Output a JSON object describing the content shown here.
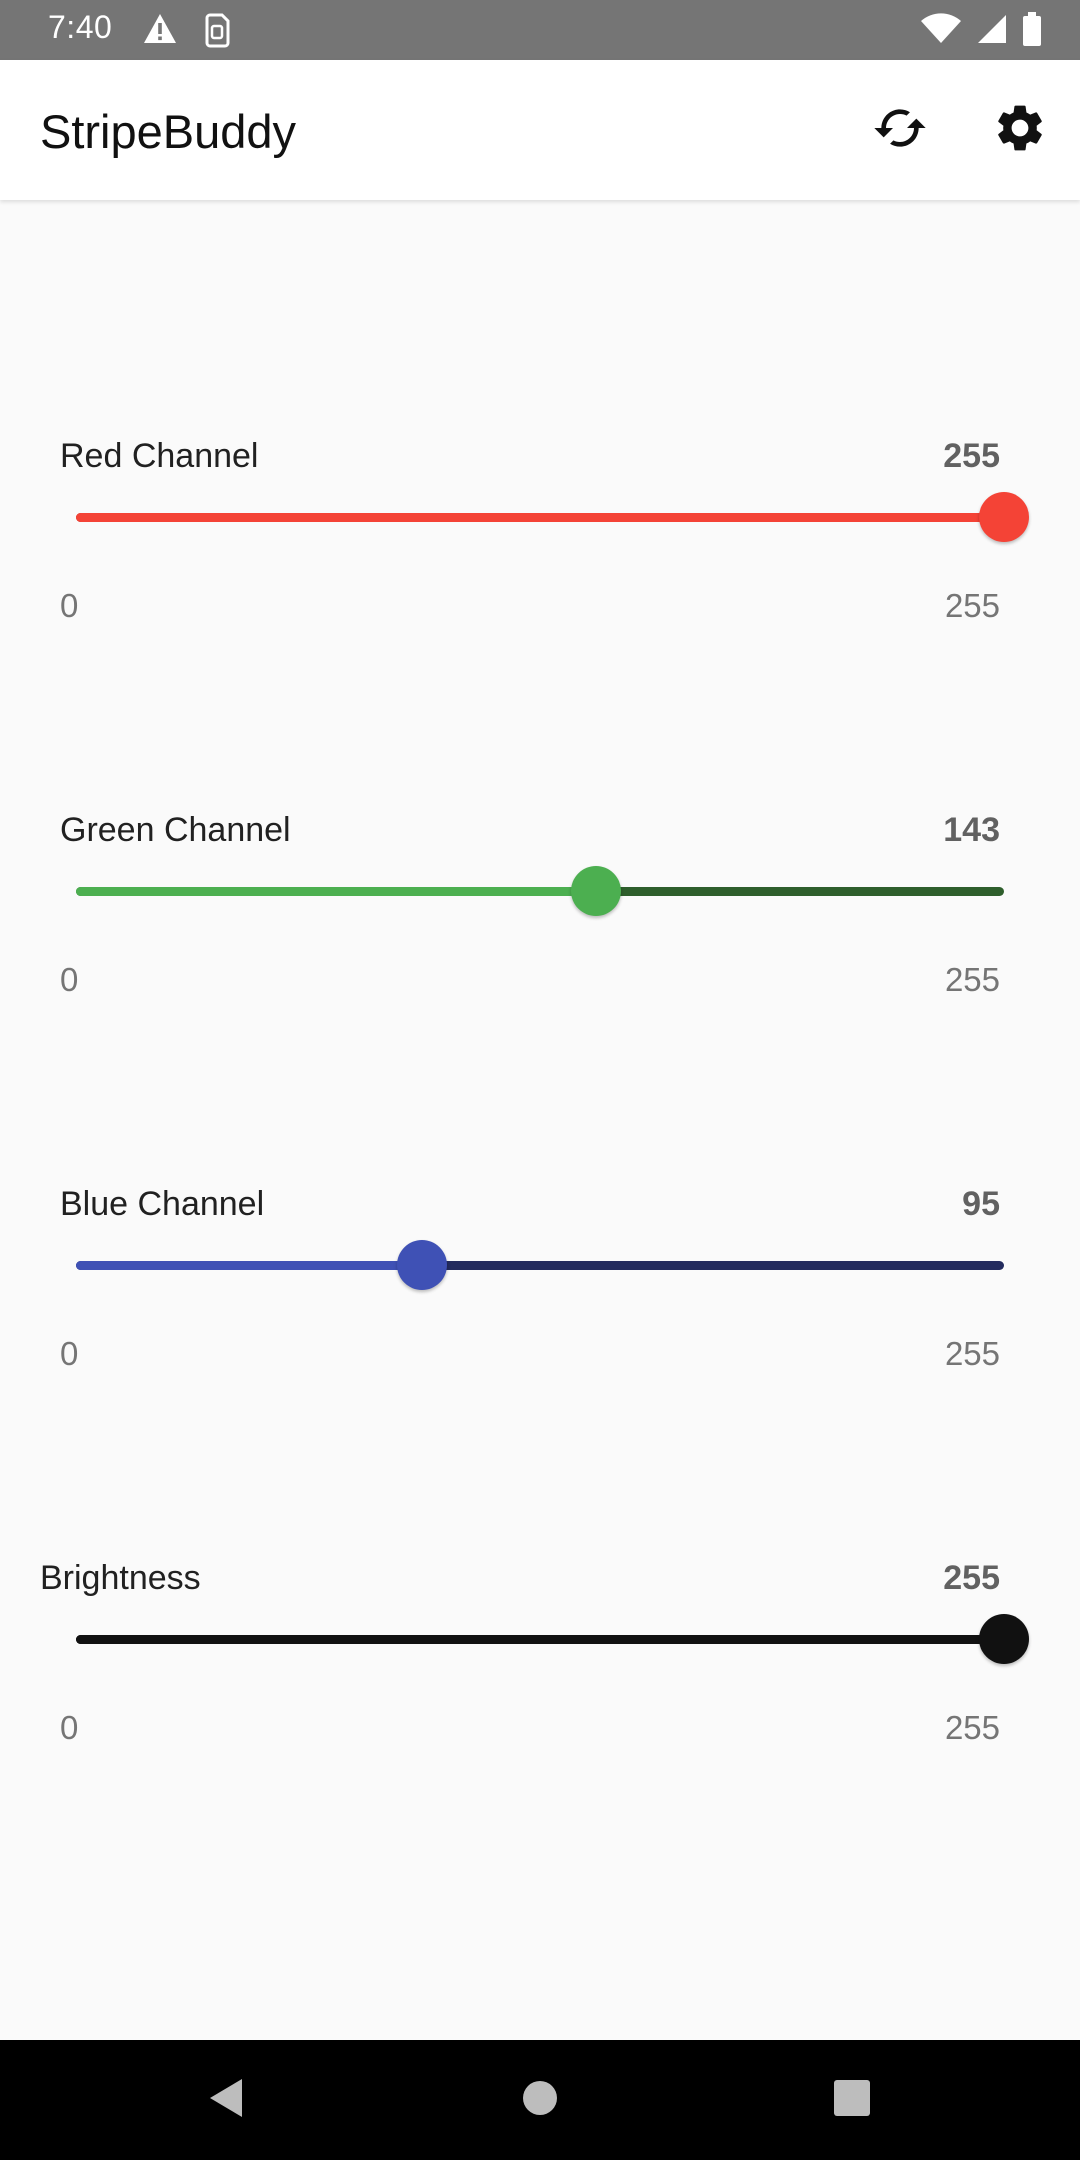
{
  "status_bar": {
    "time": "7:40",
    "left_icons": [
      "alert-icon",
      "sim-card-icon"
    ],
    "right_icons": [
      "wifi-icon",
      "signal-icon",
      "battery-icon"
    ]
  },
  "app_bar": {
    "title": "StripeBuddy",
    "actions": [
      "sync-icon",
      "settings-gear-icon"
    ]
  },
  "sliders": [
    {
      "label": "Red Channel",
      "value": 255,
      "value_text": "255",
      "min": "0",
      "max": "255",
      "fraction": 1.0,
      "active_color": "#F44336",
      "inactive_color": "#8E2620",
      "thumb_color": "#F44336"
    },
    {
      "label": "Green Channel",
      "value": 143,
      "value_text": "143",
      "min": "0",
      "max": "255",
      "fraction": 0.5608,
      "active_color": "#4CAF50",
      "inactive_color": "#2E5E2C",
      "thumb_color": "#4CAF50"
    },
    {
      "label": "Blue Channel",
      "value": 95,
      "value_text": "95",
      "min": "0",
      "max": "255",
      "fraction": 0.3725,
      "active_color": "#3F51B5",
      "inactive_color": "#232B5E",
      "thumb_color": "#3F51B5"
    },
    {
      "label": "Brightness",
      "value": 255,
      "value_text": "255",
      "min": "0",
      "max": "255",
      "fraction": 1.0,
      "active_color": "#111111",
      "inactive_color": "#111111",
      "thumb_color": "#111111"
    }
  ],
  "nav_bar": {
    "buttons": [
      "back-icon",
      "home-icon",
      "recents-icon"
    ]
  }
}
